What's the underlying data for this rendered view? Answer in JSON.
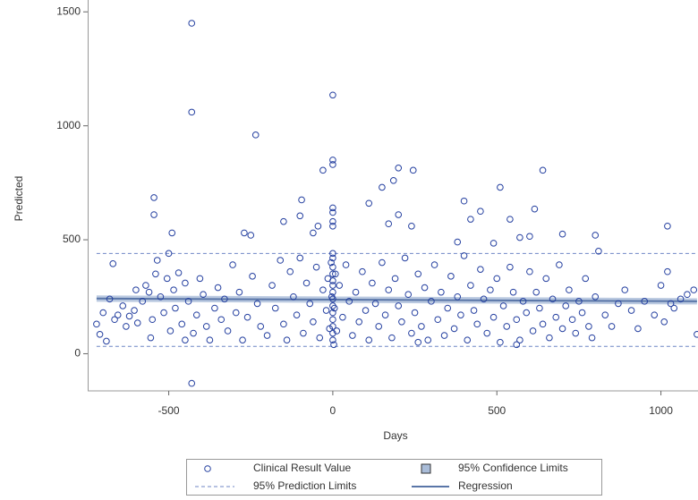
{
  "chart_data": {
    "type": "scatter",
    "x_label": "Days",
    "y_label": "Predicted",
    "xlim": [
      -747,
      1113
    ],
    "ylim": [
      -163,
      1552
    ],
    "xticks": [
      -500,
      0,
      500,
      1000
    ],
    "yticks": [
      0,
      500,
      1000,
      1500
    ],
    "series": [
      {
        "name": "Clinical Result Value",
        "color": "#2540a0",
        "x": [
          -720,
          -710,
          -700,
          -690,
          -680,
          -670,
          -665,
          -655,
          -640,
          -630,
          -620,
          -605,
          -595,
          -580,
          -570,
          -560,
          -555,
          -550,
          -540,
          -535,
          -525,
          -515,
          -505,
          -500,
          -495,
          -485,
          -480,
          -470,
          -460,
          -450,
          -440,
          -425,
          -415,
          -405,
          -395,
          -385,
          -375,
          -360,
          -350,
          -340,
          -330,
          -320,
          -305,
          -295,
          -285,
          -275,
          -260,
          -245,
          -230,
          -220,
          -200,
          -185,
          -175,
          -160,
          -150,
          -140,
          -130,
          -120,
          -110,
          -100,
          -90,
          -80,
          -70,
          -60,
          -50,
          -40,
          -30,
          -20,
          -15,
          -10,
          -5,
          -3,
          0,
          0,
          0,
          0,
          0,
          0,
          0,
          0,
          0,
          0,
          0,
          0,
          0,
          0,
          3,
          5,
          8,
          12,
          20,
          30,
          40,
          50,
          60,
          70,
          80,
          90,
          100,
          110,
          120,
          130,
          140,
          150,
          160,
          170,
          180,
          190,
          200,
          210,
          220,
          230,
          240,
          250,
          260,
          270,
          280,
          290,
          300,
          310,
          320,
          330,
          340,
          350,
          360,
          370,
          380,
          390,
          400,
          410,
          420,
          430,
          440,
          450,
          460,
          470,
          480,
          490,
          500,
          510,
          520,
          530,
          540,
          550,
          560,
          570,
          580,
          590,
          600,
          610,
          620,
          630,
          640,
          650,
          660,
          670,
          680,
          690,
          700,
          710,
          720,
          730,
          740,
          750,
          760,
          770,
          780,
          790,
          800,
          810,
          830,
          850,
          870,
          890,
          910,
          930,
          950,
          980,
          1000,
          1010,
          1020,
          1030,
          1040,
          1060,
          1080,
          1100,
          -600,
          -450,
          260,
          560,
          -430,
          -430,
          -235,
          0,
          0,
          0,
          -30,
          200,
          245,
          640,
          185,
          150,
          510,
          -545,
          -95,
          400,
          110,
          615,
          450,
          -545,
          -100,
          -150,
          200,
          420,
          540,
          240,
          1020,
          -490,
          -270,
          -250,
          600,
          570,
          700,
          800,
          380,
          490,
          -430,
          1110,
          0,
          0,
          0,
          0,
          -60,
          -45,
          170
        ],
        "values": [
          130,
          85,
          180,
          55,
          240,
          395,
          150,
          170,
          210,
          120,
          165,
          190,
          135,
          230,
          300,
          270,
          70,
          150,
          350,
          410,
          250,
          180,
          330,
          440,
          100,
          280,
          200,
          355,
          130,
          310,
          230,
          90,
          170,
          330,
          260,
          120,
          60,
          200,
          290,
          150,
          240,
          100,
          390,
          180,
          270,
          60,
          160,
          340,
          220,
          120,
          80,
          300,
          200,
          410,
          130,
          60,
          360,
          250,
          170,
          420,
          90,
          310,
          220,
          140,
          380,
          70,
          280,
          190,
          330,
          110,
          400,
          250,
          440,
          420,
          380,
          350,
          320,
          300,
          270,
          240,
          210,
          180,
          150,
          120,
          90,
          60,
          40,
          200,
          350,
          100,
          300,
          160,
          390,
          230,
          80,
          270,
          140,
          360,
          190,
          60,
          310,
          220,
          120,
          400,
          170,
          280,
          70,
          330,
          210,
          140,
          420,
          260,
          90,
          180,
          350,
          120,
          290,
          60,
          230,
          390,
          150,
          270,
          80,
          200,
          340,
          110,
          250,
          170,
          430,
          60,
          300,
          190,
          130,
          370,
          240,
          90,
          280,
          160,
          330,
          50,
          210,
          120,
          380,
          270,
          150,
          60,
          230,
          180,
          360,
          100,
          270,
          200,
          130,
          330,
          70,
          240,
          160,
          390,
          110,
          210,
          280,
          150,
          90,
          230,
          180,
          330,
          120,
          70,
          250,
          450,
          170,
          120,
          220,
          280,
          190,
          110,
          230,
          170,
          300,
          140,
          360,
          220,
          200,
          240,
          260,
          280,
          280,
          60,
          50,
          40,
          1450,
          1060,
          960,
          1135,
          850,
          830,
          805,
          815,
          805,
          805,
          760,
          730,
          730,
          685,
          675,
          670,
          660,
          635,
          625,
          610,
          605,
          580,
          610,
          590,
          590,
          560,
          560,
          530,
          530,
          520,
          515,
          510,
          525,
          520,
          490,
          485,
          -130,
          85,
          640,
          620,
          580,
          560,
          530,
          560,
          570
        ]
      }
    ],
    "confidence": {
      "name": "95% Confidence Limits",
      "color": "#a9bcd8",
      "x": [
        -720,
        1110
      ],
      "lower": [
        228,
        216
      ],
      "upper": [
        256,
        244
      ]
    },
    "prediction": {
      "name": "95% Prediction Limits",
      "color": "#6f86c6",
      "x": [
        -720,
        1110
      ],
      "lower": [
        32,
        32
      ],
      "upper": [
        440,
        440
      ]
    },
    "regression": {
      "name": "Regression",
      "color": "#5a76a8",
      "x": [
        -720,
        1110
      ],
      "values": [
        242,
        230
      ]
    }
  }
}
